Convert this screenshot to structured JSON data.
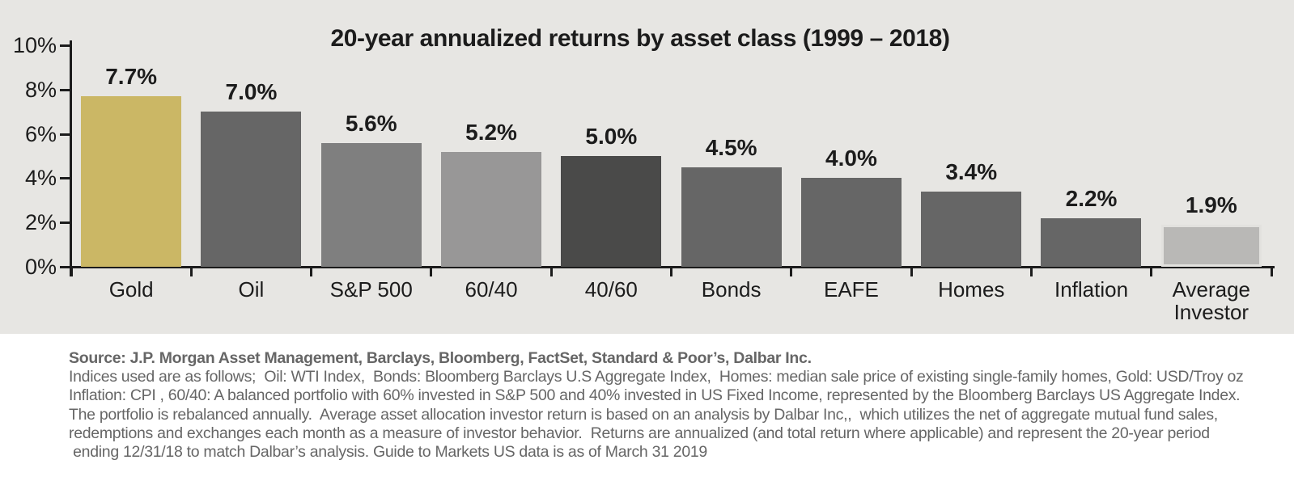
{
  "chart_data": {
    "type": "bar",
    "title": "20-year annualized returns by asset class (1999 – 2018)",
    "categories": [
      "Gold",
      "Oil",
      "S&P 500",
      "60/40",
      "40/60",
      "Bonds",
      "EAFE",
      "Homes",
      "Inflation",
      "Average Investor"
    ],
    "values": [
      7.7,
      7.0,
      5.6,
      5.2,
      5.0,
      4.5,
      4.0,
      3.4,
      2.2,
      1.9
    ],
    "value_labels": [
      "7.7%",
      "7.0%",
      "5.6%",
      "5.2%",
      "5.0%",
      "4.5%",
      "4.0%",
      "3.4%",
      "2.2%",
      "1.9%"
    ],
    "bar_colors": [
      "#cbb765",
      "#666666",
      "#7f7f7f",
      "#989797",
      "#4a4a49",
      "#666666",
      "#666666",
      "#666666",
      "#666666",
      "#b9b8b6"
    ],
    "bar_borders": [
      null,
      null,
      null,
      null,
      null,
      null,
      null,
      null,
      null,
      "#e2e1de"
    ],
    "xlabel": "",
    "ylabel": "",
    "ylim": [
      0,
      10
    ],
    "yticks": [
      0,
      2,
      4,
      6,
      8,
      10
    ],
    "ytick_labels": [
      "0%",
      "2%",
      "4%",
      "6%",
      "8%",
      "10%"
    ],
    "grid": false,
    "legend": false,
    "plot_background": "#e7e6e3",
    "axis_color": "#1c1c1c"
  },
  "footer": {
    "lines": [
      "Source: J.P. Morgan Asset Management, Barclays, Bloomberg, FactSet, Standard & Poor’s, Dalbar Inc.",
      "Indices used are as follows;  Oil: WTI Index,  Bonds: Bloomberg Barclays U.S Aggregate Index,  Homes: median sale price of existing single-family homes, Gold: USD/Troy oz",
      "Inflation: CPI , 60/40: A balanced portfolio with 60% invested in S&P 500 and 40% invested in US Fixed Income, represented by the Bloomberg Barclays US Aggregate Index.",
      "The portfolio is rebalanced annually.  Average asset allocation investor return is based on an analysis by Dalbar Inc,,  which utilizes the net of aggregate mutual fund sales,",
      "redemptions and exchanges each month as a measure of investor behavior.  Returns are annualized (and total return where applicable) and represent the 20-year period",
      " ending 12/31/18 to match Dalbar’s analysis. Guide to Markets US data is as of March 31 2019"
    ]
  }
}
